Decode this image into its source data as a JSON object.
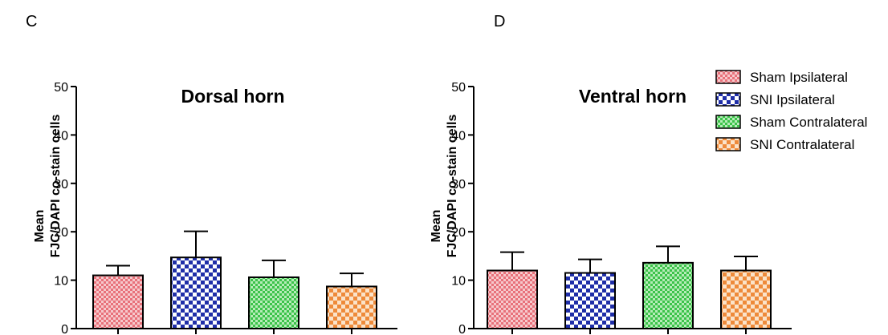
{
  "panels": [
    "C",
    "D"
  ],
  "legend": {
    "position": "top-right",
    "items": [
      {
        "label": "Sham Ipsilateral",
        "pattern": "pat-red"
      },
      {
        "label": "SNI Ipsilateral",
        "pattern": "pat-blue"
      },
      {
        "label": "Sham Contralateral",
        "pattern": "pat-green"
      },
      {
        "label": "SNI Contralateral",
        "pattern": "pat-orange"
      }
    ]
  },
  "colors": {
    "red": "#e8717a",
    "blue": "#1f2ea8",
    "green": "#3cc34a",
    "orange": "#ee8a3a"
  },
  "chart_data": [
    {
      "type": "bar",
      "title": "Dorsal horn",
      "ylabel_line1": "Mean",
      "ylabel_line2": "FJC/DAPI co-stain cells",
      "ylim": [
        0,
        50
      ],
      "yticks": [
        0,
        10,
        20,
        30,
        40,
        50
      ],
      "grid": false,
      "series": [
        {
          "name": "Sham Ipsilateral",
          "value": 11,
          "error": 2
        },
        {
          "name": "SNI Ipsilateral",
          "value": 14.7,
          "error": 5.4
        },
        {
          "name": "Sham Contralateral",
          "value": 10.6,
          "error": 3.5
        },
        {
          "name": "SNI Contralateral",
          "value": 8.7,
          "error": 2.7
        }
      ]
    },
    {
      "type": "bar",
      "title": "Ventral horn",
      "ylabel_line1": "Mean",
      "ylabel_line2": "FJC/DAPI co-stain cells",
      "ylim": [
        0,
        50
      ],
      "yticks": [
        0,
        10,
        20,
        30,
        40,
        50
      ],
      "grid": false,
      "series": [
        {
          "name": "Sham Ipsilateral",
          "value": 12,
          "error": 3.8
        },
        {
          "name": "SNI Ipsilateral",
          "value": 11.5,
          "error": 2.8
        },
        {
          "name": "Sham Contralateral",
          "value": 13.6,
          "error": 3.4
        },
        {
          "name": "SNI Contralateral",
          "value": 12,
          "error": 2.9
        }
      ]
    }
  ]
}
